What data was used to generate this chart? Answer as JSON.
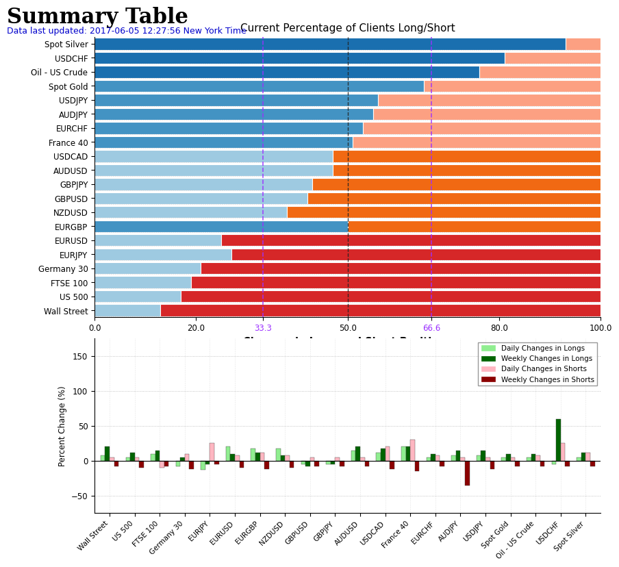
{
  "title": "Summary Table",
  "subtitle": "Data last updated: 2017-06-05 12:27:56 New York Time",
  "subtitle_color": "#0000cc",
  "chart1_title": "Current Percentage of Clients Long/Short",
  "chart2_title": "Changes in Long and Short Positions",
  "instruments": [
    "Spot Silver",
    "USDCHF",
    "Oil - US Crude",
    "Spot Gold",
    "USDJPY",
    "AUDJPY",
    "EURCHF",
    "France 40",
    "USDCAD",
    "AUDUSD",
    "GBPJPY",
    "GBPUSD",
    "NZDUSD",
    "EURGBP",
    "EURUSD",
    "EURJPY",
    "Germany 30",
    "FTSE 100",
    "US 500",
    "Wall Street"
  ],
  "long_pct": [
    93,
    81,
    76,
    65,
    56,
    55,
    53,
    51,
    47,
    47,
    43,
    42,
    38,
    50,
    25,
    27,
    21,
    19,
    17,
    13
  ],
  "instruments_bottom": [
    "Wall Street",
    "US 500",
    "FTSE 100",
    "Germany 30",
    "EURJPY",
    "EURUSD",
    "EURGBP",
    "NZDUSD",
    "GBPUSD",
    "GBPJPY",
    "AUDUSD",
    "USDCAD",
    "France 40",
    "EURCHF",
    "AUDJPY",
    "USDJPY",
    "Spot Gold",
    "Oil - US Crude",
    "USDCHF",
    "Spot Silver"
  ],
  "daily_longs": [
    8,
    5,
    10,
    -8,
    -13,
    20,
    18,
    18,
    -5,
    -5,
    15,
    12,
    20,
    5,
    8,
    8,
    5,
    5,
    -5,
    5
  ],
  "weekly_longs": [
    20,
    12,
    15,
    5,
    -5,
    10,
    12,
    8,
    -8,
    -5,
    20,
    18,
    20,
    10,
    15,
    15,
    10,
    10,
    60,
    12
  ],
  "daily_shorts": [
    5,
    5,
    -10,
    10,
    25,
    8,
    12,
    8,
    5,
    5,
    5,
    20,
    30,
    8,
    5,
    5,
    5,
    8,
    25,
    12
  ],
  "weekly_shorts": [
    -8,
    -10,
    -8,
    -12,
    -5,
    -10,
    -12,
    -10,
    -8,
    -8,
    -8,
    -12,
    -15,
    -8,
    -35,
    -12,
    -8,
    -8,
    -8,
    -8
  ],
  "bar_long_dark": "#1a6faf",
  "bar_long_mid": "#4393c3",
  "bar_long_light": "#9ecae1",
  "bar_short_dark": "#d62728",
  "bar_short_mid": "#f16913",
  "bar_short_light": "#fca082",
  "vline_color_33": "#9b30ff",
  "vline_color_50": "#222222",
  "vline_color_66": "#9b30ff",
  "xtick_color_33": "#9b30ff",
  "xtick_color_66": "#9b30ff",
  "ylabel2": "Percent Change (%)",
  "ylim2": [
    -75,
    175
  ],
  "yticks2": [
    -50,
    0,
    50,
    100,
    150
  ],
  "c_dl": "#90EE90",
  "c_wl": "#006400",
  "c_ds": "#FFB6C1",
  "c_ws": "#8B0000"
}
